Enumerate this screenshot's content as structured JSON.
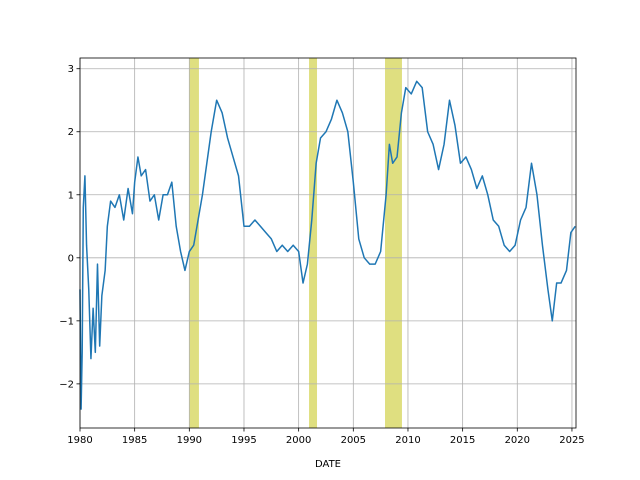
{
  "chart_data": {
    "type": "line",
    "x_label": "DATE",
    "color": "#1f77b4",
    "recession_color": "#dfdf80",
    "xlim": [
      1980,
      2025.37
    ],
    "ylim": [
      -2.7,
      3.17
    ],
    "xticks": [
      1980,
      1985,
      1990,
      1995,
      2000,
      2005,
      2010,
      2015,
      2020,
      2025
    ],
    "yticks": [
      {
        "value": -2,
        "label": "−2"
      },
      {
        "value": -1,
        "label": "−1"
      },
      0,
      1,
      2,
      3
    ],
    "grid": true,
    "recessions": [
      [
        1989.97,
        1990.88
      ],
      [
        2000.95,
        2001.68
      ],
      [
        2007.9,
        2009.45
      ]
    ],
    "x": [
      1980.0,
      1980.1,
      1980.2,
      1980.3,
      1980.45,
      1980.6,
      1980.8,
      1981.0,
      1981.2,
      1981.4,
      1981.6,
      1981.8,
      1982.0,
      1982.3,
      1982.5,
      1982.8,
      1983.2,
      1983.6,
      1984.0,
      1984.4,
      1984.8,
      1985.0,
      1985.3,
      1985.6,
      1986.0,
      1986.4,
      1986.8,
      1987.2,
      1987.6,
      1988.0,
      1988.4,
      1988.8,
      1989.2,
      1989.6,
      1990.0,
      1990.4,
      1990.8,
      1991.2,
      1991.6,
      1992.0,
      1992.5,
      1993.0,
      1993.5,
      1994.0,
      1994.5,
      1995.0,
      1995.5,
      1996.0,
      1996.5,
      1997.0,
      1997.5,
      1998.0,
      1998.5,
      1999.0,
      1999.5,
      2000.0,
      2000.4,
      2000.8,
      2001.2,
      2001.6,
      2002.0,
      2002.5,
      2003.0,
      2003.5,
      2004.0,
      2004.5,
      2005.0,
      2005.5,
      2006.0,
      2006.5,
      2007.0,
      2007.5,
      2008.0,
      2008.3,
      2008.6,
      2009.0,
      2009.4,
      2009.8,
      2010.3,
      2010.8,
      2011.3,
      2011.8,
      2012.3,
      2012.8,
      2013.3,
      2013.8,
      2014.3,
      2014.8,
      2015.3,
      2015.8,
      2016.3,
      2016.8,
      2017.3,
      2017.8,
      2018.3,
      2018.8,
      2019.3,
      2019.8,
      2020.3,
      2020.8,
      2021.3,
      2021.8,
      2022.3,
      2022.8,
      2023.2,
      2023.6,
      2024.0,
      2024.5,
      2024.9,
      2025.3
    ],
    "values": [
      -0.5,
      -2.4,
      -1.5,
      0.8,
      1.3,
      0.2,
      -0.5,
      -1.6,
      -0.8,
      -1.5,
      -0.1,
      -1.4,
      -0.6,
      -0.2,
      0.5,
      0.9,
      0.8,
      1.0,
      0.6,
      1.1,
      0.7,
      1.2,
      1.6,
      1.3,
      1.4,
      0.9,
      1.0,
      0.6,
      1.0,
      1.0,
      1.2,
      0.5,
      0.1,
      -0.2,
      0.1,
      0.2,
      0.6,
      1.0,
      1.5,
      2.0,
      2.5,
      2.3,
      1.9,
      1.6,
      1.3,
      0.5,
      0.5,
      0.6,
      0.5,
      0.4,
      0.3,
      0.1,
      0.2,
      0.1,
      0.2,
      0.1,
      -0.4,
      -0.1,
      0.6,
      1.5,
      1.9,
      2.0,
      2.2,
      2.5,
      2.3,
      2.0,
      1.2,
      0.3,
      0.0,
      -0.1,
      -0.1,
      0.1,
      1.0,
      1.8,
      1.5,
      1.6,
      2.3,
      2.7,
      2.6,
      2.8,
      2.7,
      2.0,
      1.8,
      1.4,
      1.8,
      2.5,
      2.1,
      1.5,
      1.6,
      1.4,
      1.1,
      1.3,
      1.0,
      0.6,
      0.5,
      0.2,
      0.1,
      0.2,
      0.6,
      0.8,
      1.5,
      1.0,
      0.2,
      -0.5,
      -1.0,
      -0.4,
      -0.4,
      -0.2,
      0.4,
      0.5
    ]
  }
}
